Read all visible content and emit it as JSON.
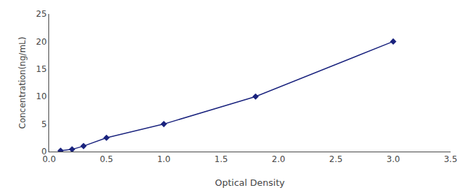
{
  "chart_data": {
    "type": "line",
    "x": [
      0.1,
      0.2,
      0.3,
      0.5,
      1.0,
      1.8,
      3.0
    ],
    "values": [
      0.15,
      0.4,
      1.0,
      2.5,
      5.0,
      10.0,
      20.0
    ],
    "color": "#1a237e",
    "marker": "diamond",
    "xlabel": "Optical Density",
    "ylabel": "Concentration(ng/mL)",
    "xlim": [
      0,
      3.5
    ],
    "ylim": [
      0,
      25
    ],
    "xticks": [
      {
        "value": 0,
        "label": "0.0"
      },
      0.5,
      {
        "value": 1.0,
        "label": "1.0"
      },
      1.5,
      {
        "value": 2.0,
        "label": "2.0"
      },
      2.5,
      {
        "value": 3.0,
        "label": "3.0"
      },
      3.5
    ],
    "yticks": [
      0,
      5,
      10,
      15,
      20,
      25
    ],
    "grid": false
  }
}
